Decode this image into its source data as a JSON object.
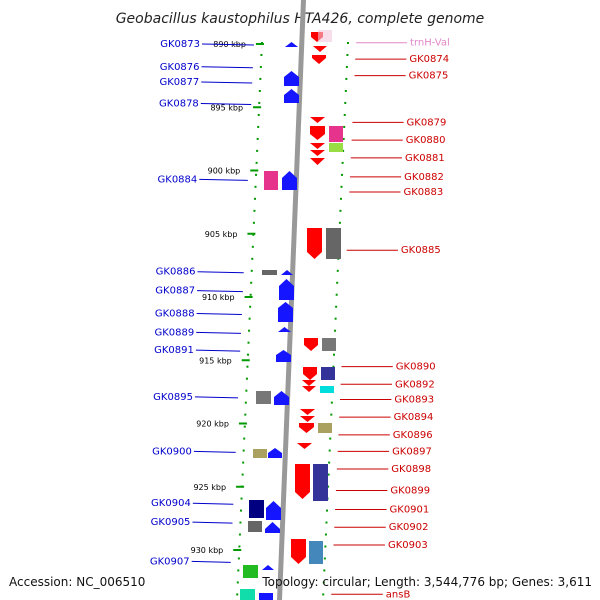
{
  "title": "Geobacillus kaustophilus HTA426, complete genome",
  "footer": {
    "accession": "Accession: NC_006510",
    "topology": "Topology: circular; Length: 3,544,776 bp; Genes: 3,611"
  },
  "colors": {
    "left_label": "#0000cc",
    "right_label": "#cc0000",
    "trna_label": "#e088c8",
    "backbone": "#999999",
    "tick": "#009900"
  },
  "ruler_marks": [
    {
      "label": "890 kbp",
      "kbp": 890
    },
    {
      "label": "895 kbp",
      "kbp": 895
    },
    {
      "label": "900 kbp",
      "kbp": 900
    },
    {
      "label": "905 kbp",
      "kbp": 905
    },
    {
      "label": "910 kbp",
      "kbp": 910
    },
    {
      "label": "915 kbp",
      "kbp": 915
    },
    {
      "label": "920 kbp",
      "kbp": 920
    },
    {
      "label": "925 kbp",
      "kbp": 925
    },
    {
      "label": "930 kbp",
      "kbp": 930
    }
  ],
  "left_labels": [
    {
      "name": "GK0873",
      "kbp": 890.0
    },
    {
      "name": "GK0876",
      "kbp": 891.8
    },
    {
      "name": "GK0877",
      "kbp": 893.0
    },
    {
      "name": "GK0878",
      "kbp": 894.7
    },
    {
      "name": "GK0884",
      "kbp": 900.7
    },
    {
      "name": "GK0886",
      "kbp": 908.0
    },
    {
      "name": "GK0887",
      "kbp": 909.5
    },
    {
      "name": "GK0888",
      "kbp": 911.3
    },
    {
      "name": "GK0889",
      "kbp": 912.8
    },
    {
      "name": "GK0891",
      "kbp": 914.2
    },
    {
      "name": "GK0895",
      "kbp": 917.9
    },
    {
      "name": "GK0900",
      "kbp": 922.2
    },
    {
      "name": "GK0904",
      "kbp": 926.3
    },
    {
      "name": "GK0905",
      "kbp": 927.8
    },
    {
      "name": "GK0907",
      "kbp": 930.9
    }
  ],
  "right_labels": [
    {
      "name": "trnH-Val",
      "kbp": 889.9,
      "type": "trna"
    },
    {
      "name": "GK0874",
      "kbp": 891.2,
      "type": "gene"
    },
    {
      "name": "GK0875",
      "kbp": 892.5,
      "type": "gene"
    },
    {
      "name": "GK0879",
      "kbp": 896.2,
      "type": "gene"
    },
    {
      "name": "GK0880",
      "kbp": 897.6,
      "type": "gene"
    },
    {
      "name": "GK0881",
      "kbp": 899.0,
      "type": "gene"
    },
    {
      "name": "GK0882",
      "kbp": 900.5,
      "type": "gene"
    },
    {
      "name": "GK0883",
      "kbp": 901.7,
      "type": "gene"
    },
    {
      "name": "GK0885",
      "kbp": 906.3,
      "type": "gene"
    },
    {
      "name": "GK0890",
      "kbp": 915.5,
      "type": "gene"
    },
    {
      "name": "GK0892",
      "kbp": 916.9,
      "type": "gene"
    },
    {
      "name": "GK0893",
      "kbp": 918.1,
      "type": "gene"
    },
    {
      "name": "GK0894",
      "kbp": 919.5,
      "type": "gene"
    },
    {
      "name": "GK0896",
      "kbp": 920.9,
      "type": "gene"
    },
    {
      "name": "GK0897",
      "kbp": 922.2,
      "type": "gene"
    },
    {
      "name": "GK0898",
      "kbp": 923.6,
      "type": "gene"
    },
    {
      "name": "GK0899",
      "kbp": 925.3,
      "type": "gene"
    },
    {
      "name": "GK0901",
      "kbp": 926.8,
      "type": "gene"
    },
    {
      "name": "GK0902",
      "kbp": 928.2,
      "type": "gene"
    },
    {
      "name": "GK0903",
      "kbp": 929.6,
      "type": "gene"
    },
    {
      "name": "ansB",
      "kbp": 933.5,
      "type": "gene"
    }
  ]
}
